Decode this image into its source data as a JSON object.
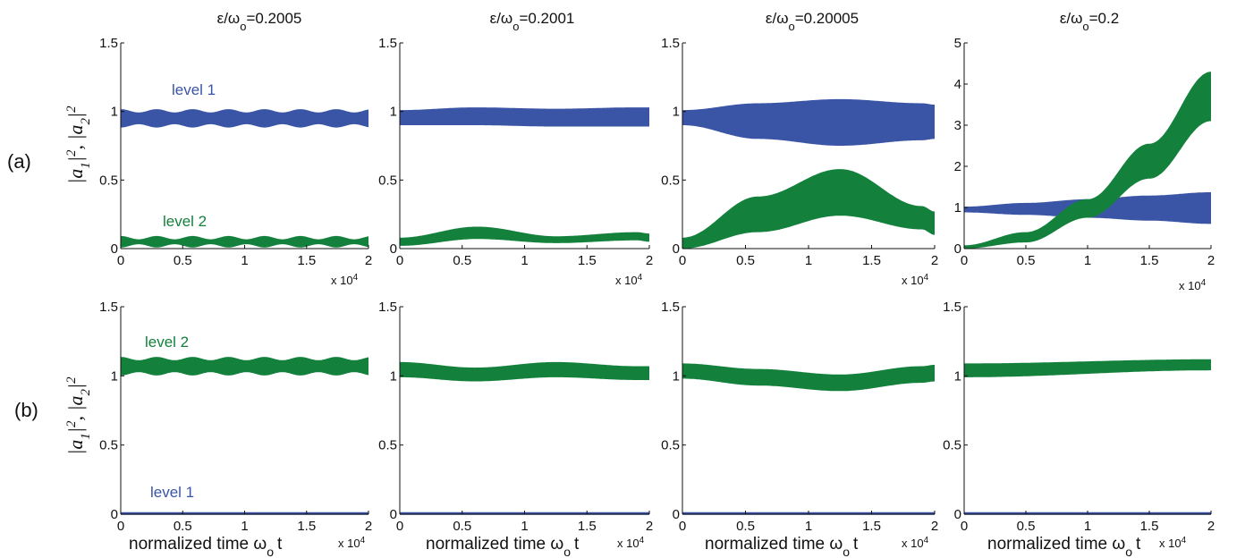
{
  "figure": {
    "row_labels": [
      "(a)",
      "(b)"
    ],
    "ylabel_parts": {
      "p1": "|a",
      "s1": "1",
      "p2": "|",
      "e1": "2",
      "comma": ", ",
      "p3": "|a",
      "s2": "2",
      "p4": "|",
      "e2": "2"
    },
    "xlabel_parts": {
      "text": "normalized time ",
      "omega": "ω",
      "sub": "o",
      "t": "t"
    },
    "exponent_parts": {
      "base": "x 10",
      "exp": "4"
    },
    "column_titles": [
      {
        "num": "ε/ω",
        "sub": "o",
        "rest": "=0.2005"
      },
      {
        "num": "ε/ω",
        "sub": "o",
        "rest": "=0.2001"
      },
      {
        "num": "ε/ω",
        "sub": "o",
        "rest": "=0.20005"
      },
      {
        "num": "ε/ω",
        "sub": "o",
        "rest": "=0.2"
      }
    ],
    "colors": {
      "level1": "#3a54a6",
      "level2": "#13813c"
    }
  },
  "chart_data": [
    {
      "type": "area",
      "row": "a",
      "column": 1,
      "title": "ε/ωo=0.2005",
      "xlim": [
        0,
        20000
      ],
      "ylim": [
        0,
        1.5
      ],
      "xticks": [
        "0",
        "0.5",
        "1",
        "1.5",
        "2"
      ],
      "yticks": [
        "0",
        "0.5",
        "1",
        "1.5"
      ],
      "series": [
        {
          "name": "level 1",
          "color": "#3a54a6",
          "band": {
            "kind": "oscillating",
            "center": 0.95,
            "halfwidth": 0.055,
            "ripple": 0.012,
            "period": 2900
          }
        },
        {
          "name": "level 2",
          "color": "#13813c",
          "band": {
            "kind": "oscillating",
            "center": 0.05,
            "halfwidth": 0.03,
            "ripple": 0.012,
            "period": 2900
          }
        }
      ]
    },
    {
      "type": "area",
      "row": "a",
      "column": 2,
      "title": "ε/ωo=0.2001",
      "xlim": [
        0,
        20000
      ],
      "ylim": [
        0,
        1.5
      ],
      "xticks": [
        "0",
        "0.5",
        "1",
        "1.5",
        "2"
      ],
      "yticks": [
        "0",
        "0.5",
        "1",
        "1.5"
      ],
      "series": [
        {
          "color": "#3a54a6",
          "band": {
            "kind": "points",
            "x": [
              0,
              6000,
              12500,
              19000,
              20000
            ],
            "lower": [
              0.9,
              0.9,
              0.89,
              0.89,
              0.89
            ],
            "upper": [
              1.01,
              1.03,
              1.02,
              1.03,
              1.03
            ]
          }
        },
        {
          "color": "#13813c",
          "band": {
            "kind": "points",
            "x": [
              0,
              6200,
              12500,
              19000,
              20000
            ],
            "lower": [
              0.02,
              0.07,
              0.04,
              0.06,
              0.05
            ],
            "upper": [
              0.08,
              0.16,
              0.09,
              0.12,
              0.11
            ]
          }
        }
      ]
    },
    {
      "type": "area",
      "row": "a",
      "column": 3,
      "title": "ε/ωo=0.20005",
      "xlim": [
        0,
        20000
      ],
      "ylim": [
        0,
        1.5
      ],
      "xticks": [
        "0",
        "0.5",
        "1",
        "1.5",
        "2"
      ],
      "yticks": [
        "0",
        "0.5",
        "1",
        "1.5"
      ],
      "series": [
        {
          "color": "#3a54a6",
          "band": {
            "kind": "points",
            "x": [
              0,
              6000,
              12500,
              19000,
              20000
            ],
            "lower": [
              0.9,
              0.8,
              0.75,
              0.79,
              0.8
            ],
            "upper": [
              1.01,
              1.06,
              1.09,
              1.06,
              1.05
            ]
          }
        },
        {
          "color": "#13813c",
          "band": {
            "kind": "points",
            "x": [
              0,
              6000,
              12500,
              19000,
              20000
            ],
            "lower": [
              0.0,
              0.12,
              0.24,
              0.14,
              0.1
            ],
            "upper": [
              0.08,
              0.38,
              0.58,
              0.31,
              0.27
            ]
          }
        }
      ]
    },
    {
      "type": "area",
      "row": "a",
      "column": 4,
      "title": "ε/ωo=0.2",
      "xlim": [
        0,
        20000
      ],
      "ylim": [
        0,
        5
      ],
      "xticks": [
        "0",
        "0.5",
        "1",
        "1.5",
        "2"
      ],
      "yticks": [
        "0",
        "1",
        "2",
        "3",
        "4",
        "5"
      ],
      "series": [
        {
          "color": "#3a54a6",
          "band": {
            "kind": "points",
            "x": [
              0,
              5000,
              10000,
              15000,
              20000
            ],
            "lower": [
              0.88,
              0.82,
              0.75,
              0.68,
              0.6
            ],
            "upper": [
              1.02,
              1.11,
              1.2,
              1.29,
              1.37
            ]
          }
        },
        {
          "color": "#13813c",
          "band": {
            "kind": "points",
            "x": [
              0,
              5000,
              10000,
              15000,
              20000
            ],
            "lower": [
              0.0,
              0.15,
              0.75,
              1.7,
              3.1
            ],
            "upper": [
              0.08,
              0.4,
              1.2,
              2.55,
              4.3
            ]
          }
        }
      ]
    },
    {
      "type": "area",
      "row": "b",
      "column": 1,
      "xlim": [
        0,
        20000
      ],
      "ylim": [
        0,
        1.5
      ],
      "xticks": [
        "0",
        "0.5",
        "1",
        "1.5",
        "2"
      ],
      "yticks": [
        "0",
        "0.5",
        "1",
        "1.5"
      ],
      "series": [
        {
          "name": "level 2",
          "color": "#13813c",
          "band": {
            "kind": "oscillating",
            "center": 1.07,
            "halfwidth": 0.055,
            "ripple": 0.012,
            "period": 2900
          }
        },
        {
          "name": "level 1",
          "color": "#3a54a6",
          "band": {
            "kind": "oscillating",
            "center": 0.005,
            "halfwidth": 0.01,
            "ripple": 0,
            "period": 2900
          }
        }
      ]
    },
    {
      "type": "area",
      "row": "b",
      "column": 2,
      "xlim": [
        0,
        20000
      ],
      "ylim": [
        0,
        1.5
      ],
      "xticks": [
        "0",
        "0.5",
        "1",
        "1.5",
        "2"
      ],
      "yticks": [
        "0",
        "0.5",
        "1",
        "1.5"
      ],
      "series": [
        {
          "color": "#13813c",
          "band": {
            "kind": "points",
            "x": [
              0,
              6000,
              12500,
              19000,
              20000
            ],
            "lower": [
              0.99,
              0.96,
              0.99,
              0.97,
              0.97
            ],
            "upper": [
              1.1,
              1.06,
              1.1,
              1.07,
              1.07
            ]
          }
        },
        {
          "color": "#3a54a6",
          "band": {
            "kind": "points",
            "x": [
              0,
              20000
            ],
            "lower": [
              -0.005,
              -0.005
            ],
            "upper": [
              0.015,
              0.015
            ]
          }
        }
      ]
    },
    {
      "type": "area",
      "row": "b",
      "column": 3,
      "xlim": [
        0,
        20000
      ],
      "ylim": [
        0,
        1.5
      ],
      "xticks": [
        "0",
        "0.5",
        "1",
        "1.5",
        "2"
      ],
      "yticks": [
        "0",
        "0.5",
        "1",
        "1.5"
      ],
      "series": [
        {
          "color": "#13813c",
          "band": {
            "kind": "points",
            "x": [
              0,
              6000,
              12500,
              19000,
              20000
            ],
            "lower": [
              0.98,
              0.93,
              0.89,
              0.95,
              0.96
            ],
            "upper": [
              1.09,
              1.05,
              1.01,
              1.07,
              1.08
            ]
          }
        },
        {
          "color": "#3a54a6",
          "band": {
            "kind": "points",
            "x": [
              0,
              20000
            ],
            "lower": [
              -0.005,
              -0.005
            ],
            "upper": [
              0.015,
              0.015
            ]
          }
        }
      ]
    },
    {
      "type": "area",
      "row": "b",
      "column": 4,
      "xlim": [
        0,
        20000
      ],
      "ylim": [
        0,
        1.5
      ],
      "xticks": [
        "0",
        "0.5",
        "1",
        "1.5",
        "2"
      ],
      "yticks": [
        "0",
        "0.5",
        "1",
        "1.5"
      ],
      "series": [
        {
          "color": "#13813c",
          "band": {
            "kind": "points",
            "x": [
              0,
              20000
            ],
            "lower": [
              0.99,
              1.04
            ],
            "upper": [
              1.09,
              1.12
            ]
          }
        },
        {
          "color": "#3a54a6",
          "band": {
            "kind": "points",
            "x": [
              0,
              20000
            ],
            "lower": [
              -0.005,
              -0.005
            ],
            "upper": [
              0.015,
              0.015
            ]
          }
        }
      ]
    }
  ]
}
